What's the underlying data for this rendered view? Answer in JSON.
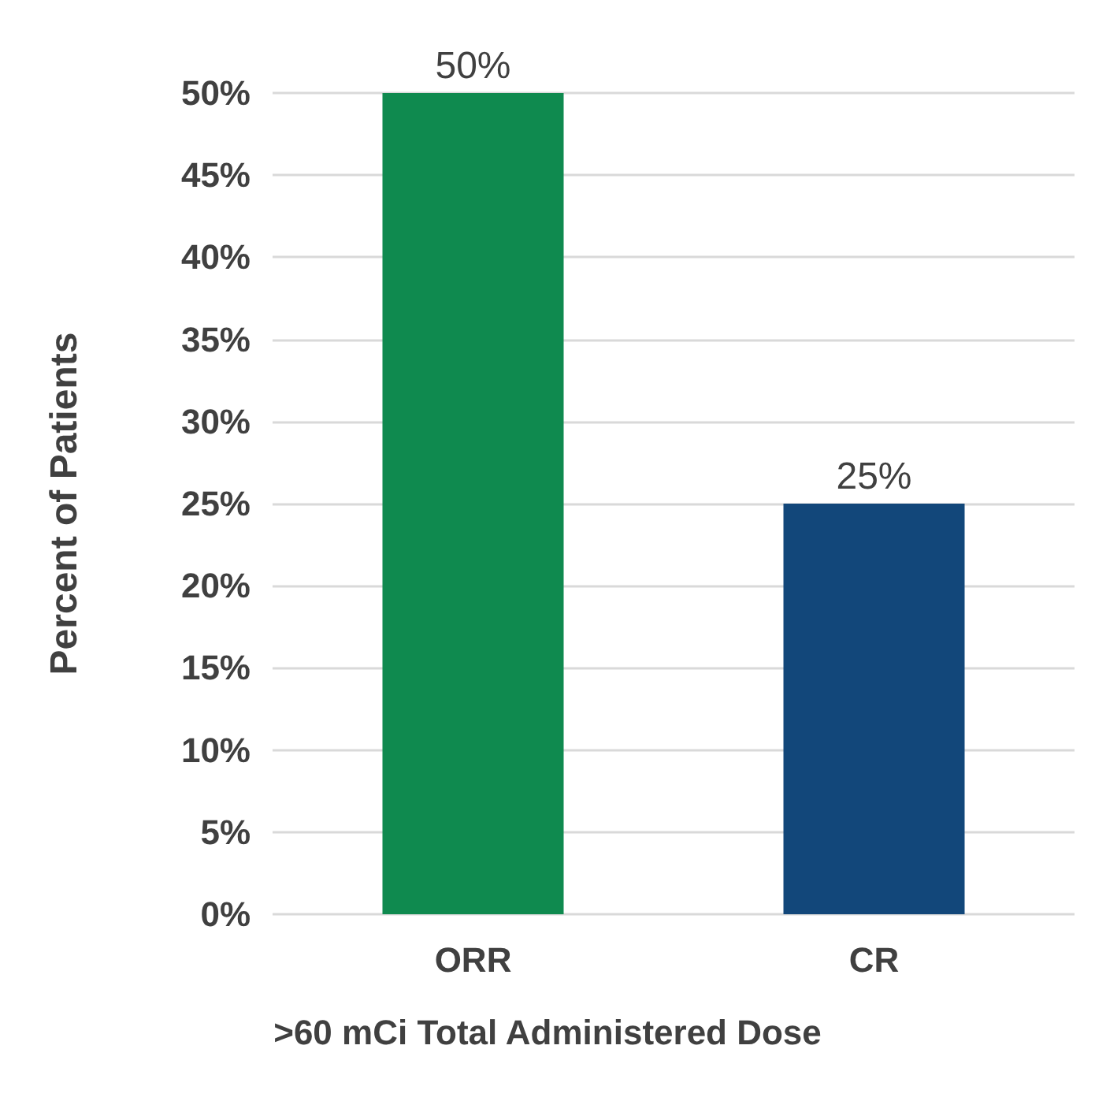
{
  "chart_data": {
    "type": "bar",
    "categories": [
      "ORR",
      "CR"
    ],
    "values": [
      50,
      25
    ],
    "colors": [
      "#0f8a4f",
      "#12477a"
    ],
    "value_labels": [
      "50%",
      "25%"
    ],
    "ylabel": "Percent of Patients",
    "xlabel": ">60 mCi Total Administered Dose",
    "ylim": [
      0,
      50
    ],
    "yticks": [
      {
        "value": 0,
        "label": "0%"
      },
      {
        "value": 5,
        "label": "5%"
      },
      {
        "value": 10,
        "label": "10%"
      },
      {
        "value": 15,
        "label": "15%"
      },
      {
        "value": 20,
        "label": "20%"
      },
      {
        "value": 25,
        "label": "25%"
      },
      {
        "value": 30,
        "label": "30%"
      },
      {
        "value": 35,
        "label": "35%"
      },
      {
        "value": 40,
        "label": "40%"
      },
      {
        "value": 45,
        "label": "45%"
      },
      {
        "value": 50,
        "label": "50%"
      }
    ],
    "grid": "y"
  }
}
